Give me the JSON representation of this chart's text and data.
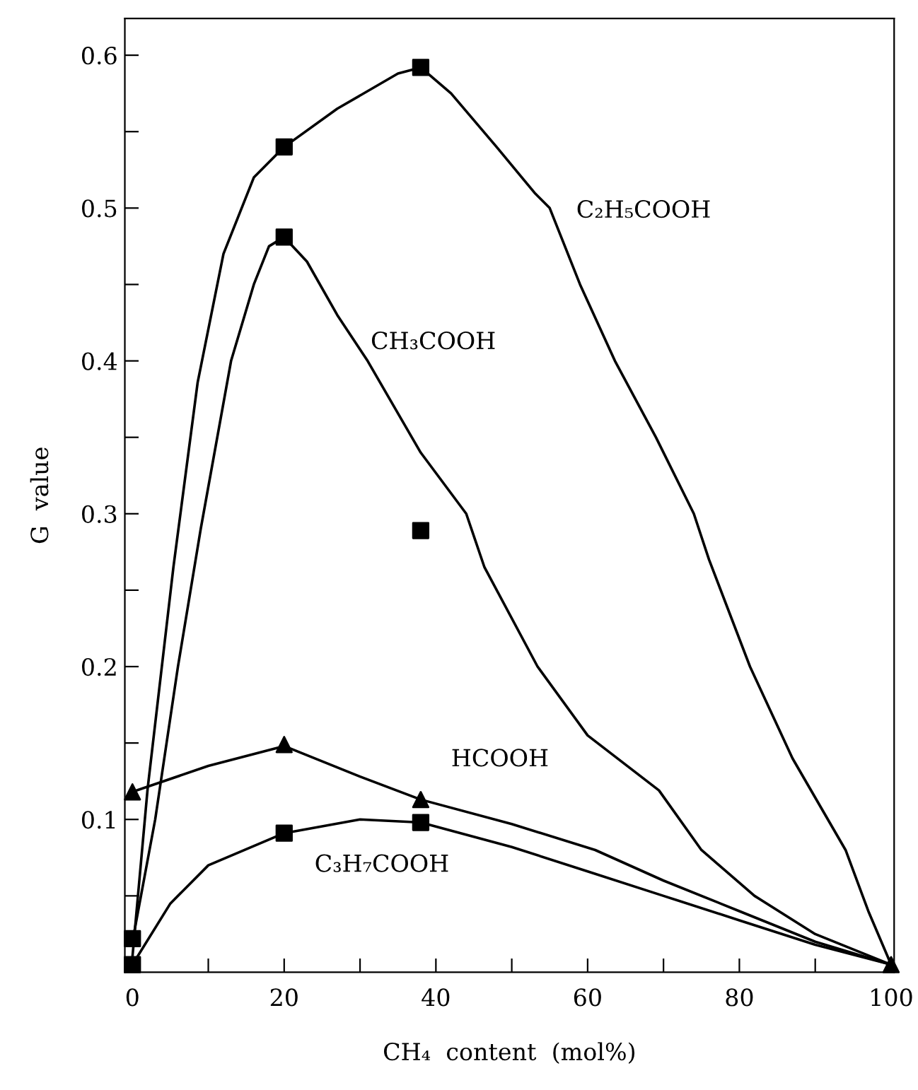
{
  "chart_data": {
    "type": "line",
    "xlabel": "CH₄  content  (mol%)",
    "ylabel": "G  value",
    "xlim": [
      -1,
      100.4
    ],
    "ylim": [
      0,
      0.624
    ],
    "xticks": [
      0,
      {
        "value": 10,
        "label": null
      },
      20,
      {
        "value": 30,
        "label": null
      },
      40,
      {
        "value": 50,
        "label": null
      },
      60,
      {
        "value": 70,
        "label": null
      },
      80,
      {
        "value": 90,
        "label": null
      },
      100
    ],
    "yticks": [
      {
        "value": 0.05,
        "label": null
      },
      0.1,
      {
        "value": 0.15,
        "label": null
      },
      0.2,
      {
        "value": 0.25,
        "label": null
      },
      0.3,
      {
        "value": 0.35,
        "label": null
      },
      0.4,
      {
        "value": 0.45,
        "label": null
      },
      0.5,
      {
        "value": 0.55,
        "label": null
      },
      0.6
    ],
    "grid": false,
    "legend": false,
    "line_style": "solid",
    "series": [
      {
        "name": "C₂H₅COOH",
        "color": "#000000",
        "marker": "none",
        "x": [
          0,
          2,
          5.4,
          8.6,
          12,
          16,
          20,
          27,
          35,
          38,
          42,
          48,
          53,
          55,
          59,
          63.6,
          69,
          74,
          76,
          81.4,
          87,
          94,
          97,
          100
        ],
        "values": [
          0.01,
          0.12,
          0.265,
          0.386,
          0.47,
          0.52,
          0.54,
          0.565,
          0.588,
          0.592,
          0.575,
          0.54,
          0.51,
          0.5,
          0.45,
          0.4,
          0.35,
          0.3,
          0.27,
          0.2,
          0.14,
          0.08,
          0.04,
          0.005
        ]
      },
      {
        "name": "CH₃COOH",
        "color": "#000000",
        "marker": "none",
        "x": [
          0,
          3,
          6,
          9,
          13,
          16,
          18,
          20,
          23,
          27,
          31,
          38,
          44,
          46.4,
          53.4,
          60,
          69.4,
          75,
          82,
          90,
          100
        ],
        "values": [
          0.02,
          0.1,
          0.2,
          0.29,
          0.4,
          0.45,
          0.475,
          0.481,
          0.465,
          0.43,
          0.4,
          0.34,
          0.3,
          0.265,
          0.2,
          0.155,
          0.119,
          0.08,
          0.05,
          0.025,
          0.005
        ]
      },
      {
        "name": "HCOOH",
        "color": "#000000",
        "marker": "none",
        "x": [
          0,
          10,
          20,
          30,
          38,
          50,
          61,
          70,
          80,
          90,
          100
        ],
        "values": [
          0.118,
          0.135,
          0.148,
          0.128,
          0.113,
          0.097,
          0.08,
          0.06,
          0.04,
          0.02,
          0.005
        ]
      },
      {
        "name": "C₃H₇COOH",
        "color": "#000000",
        "marker": "none",
        "x": [
          0,
          5,
          10,
          20,
          30,
          38,
          50,
          60,
          70,
          80,
          90,
          100
        ],
        "values": [
          0.005,
          0.045,
          0.07,
          0.091,
          0.1,
          0.098,
          0.082,
          0.066,
          0.05,
          0.034,
          0.018,
          0.005
        ]
      },
      {
        "type": "scatter",
        "color": "#000000",
        "marker": "square",
        "x": [
          0,
          20,
          38,
          20,
          38
        ],
        "values": [
          0.005,
          0.54,
          0.592,
          0.091,
          0.098
        ]
      },
      {
        "type": "scatter",
        "color": "#000000",
        "marker": "square",
        "x": [
          0,
          20,
          38
        ],
        "values": [
          0.022,
          0.481,
          0.289
        ]
      },
      {
        "type": "scatter",
        "color": "#000000",
        "marker": "triangle",
        "x": [
          0,
          20,
          38,
          100
        ],
        "values": [
          0.118,
          0.149,
          0.113,
          0.005
        ]
      }
    ]
  }
}
